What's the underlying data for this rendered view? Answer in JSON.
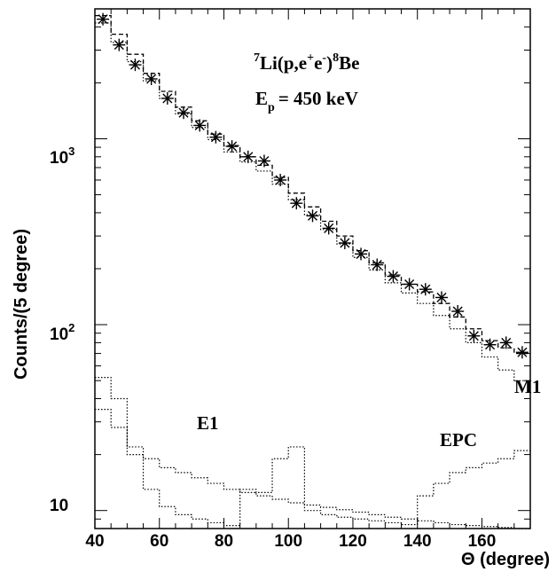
{
  "chart_data": {
    "type": "line",
    "x_axis": {
      "label": "Θ (degree)",
      "range": [
        40,
        175
      ],
      "ticks": [
        40,
        60,
        80,
        100,
        120,
        140,
        160
      ]
    },
    "y_axis": {
      "label": "Counts/(5 degree)",
      "scale": "log",
      "range": [
        8,
        5000
      ],
      "tick_labels": [
        {
          "value": 10,
          "base": "10",
          "exp": ""
        },
        {
          "value": 100,
          "base": "10",
          "exp": "2"
        },
        {
          "value": 1000,
          "base": "10",
          "exp": "3"
        }
      ]
    },
    "annotations": {
      "reaction": {
        "pre": "7",
        "a": "Li(p,e",
        "sup1": "+",
        "b": "e",
        "sup2": "-",
        "c": ")",
        "post": "8",
        "d": "Be"
      },
      "energy": {
        "main": "E",
        "sub": "p",
        "rest": "= 450 keV"
      },
      "m1": "M1",
      "e1": "E1",
      "epc": "EPC"
    },
    "series": [
      {
        "kind": "data_asterisk",
        "x": [
          42.5,
          47.5,
          52.5,
          57.5,
          62.5,
          67.5,
          72.5,
          77.5,
          82.5,
          87.5,
          92.5,
          97.5,
          102.5,
          107.5,
          112.5,
          117.5,
          122.5,
          127.5,
          132.5,
          137.5,
          142.5,
          147.5,
          152.5,
          157.5,
          162.5,
          167.5,
          172.5
        ],
        "y": [
          4400,
          3200,
          2500,
          2100,
          1650,
          1380,
          1180,
          1020,
          910,
          800,
          760,
          600,
          450,
          385,
          330,
          275,
          240,
          210,
          182,
          165,
          155,
          140,
          118,
          87,
          78,
          80,
          71
        ]
      },
      {
        "kind": "dashed_histogram",
        "x_edges": [
          40,
          45,
          50,
          55,
          60,
          65,
          70,
          75,
          80,
          85,
          90,
          95,
          100,
          105,
          110,
          115,
          120,
          125,
          130,
          135,
          140,
          145,
          150,
          155,
          160,
          165,
          170,
          175
        ],
        "y": [
          4600,
          3650,
          2850,
          2250,
          1800,
          1480,
          1250,
          1060,
          920,
          800,
          720,
          620,
          510,
          430,
          360,
          300,
          250,
          215,
          185,
          165,
          150,
          130,
          110,
          95,
          82,
          75,
          70
        ]
      },
      {
        "kind": "dotted_histogram_M1",
        "x_edges": [
          40,
          45,
          50,
          55,
          60,
          65,
          70,
          75,
          80,
          85,
          90,
          95,
          100,
          105,
          110,
          115,
          120,
          125,
          130,
          135,
          140,
          145,
          150,
          155,
          160,
          165,
          170,
          175
        ],
        "y": [
          4200,
          3300,
          2600,
          2050,
          1650,
          1360,
          1150,
          990,
          850,
          750,
          670,
          570,
          470,
          390,
          325,
          272,
          230,
          197,
          168,
          148,
          130,
          112,
          95,
          80,
          67,
          57,
          50
        ]
      },
      {
        "kind": "dotted_histogram_E1",
        "x_edges": [
          40,
          45,
          50,
          55,
          60,
          65,
          70,
          75,
          80,
          85,
          90,
          95,
          100,
          105,
          110,
          115,
          120,
          125,
          130,
          135,
          140,
          145,
          150,
          155,
          160,
          165,
          170,
          175
        ],
        "y": [
          35,
          28,
          22,
          19,
          17,
          16,
          15,
          14,
          13,
          12.5,
          12,
          11.5,
          11,
          10.7,
          10.4,
          10.1,
          9.8,
          9.5,
          9.2,
          9.0,
          8.8,
          8.6,
          8.4,
          8.3,
          8.2,
          8.1,
          8.0
        ]
      },
      {
        "kind": "dotted_histogram_EPC",
        "x_edges": [
          40,
          45,
          50,
          55,
          60,
          65,
          70,
          75,
          80,
          85,
          90,
          95,
          100,
          105,
          110,
          115,
          120,
          125,
          130,
          135,
          140,
          145,
          150,
          155,
          160,
          165,
          170,
          175
        ],
        "y": [
          52,
          40,
          20,
          13,
          10.5,
          9.5,
          9.0,
          8.6,
          8.3,
          13,
          12.5,
          19,
          22,
          10,
          9.5,
          9.2,
          9.0,
          8.8,
          8.6,
          8.4,
          12,
          14,
          16,
          17,
          18,
          19,
          21
        ]
      }
    ]
  }
}
